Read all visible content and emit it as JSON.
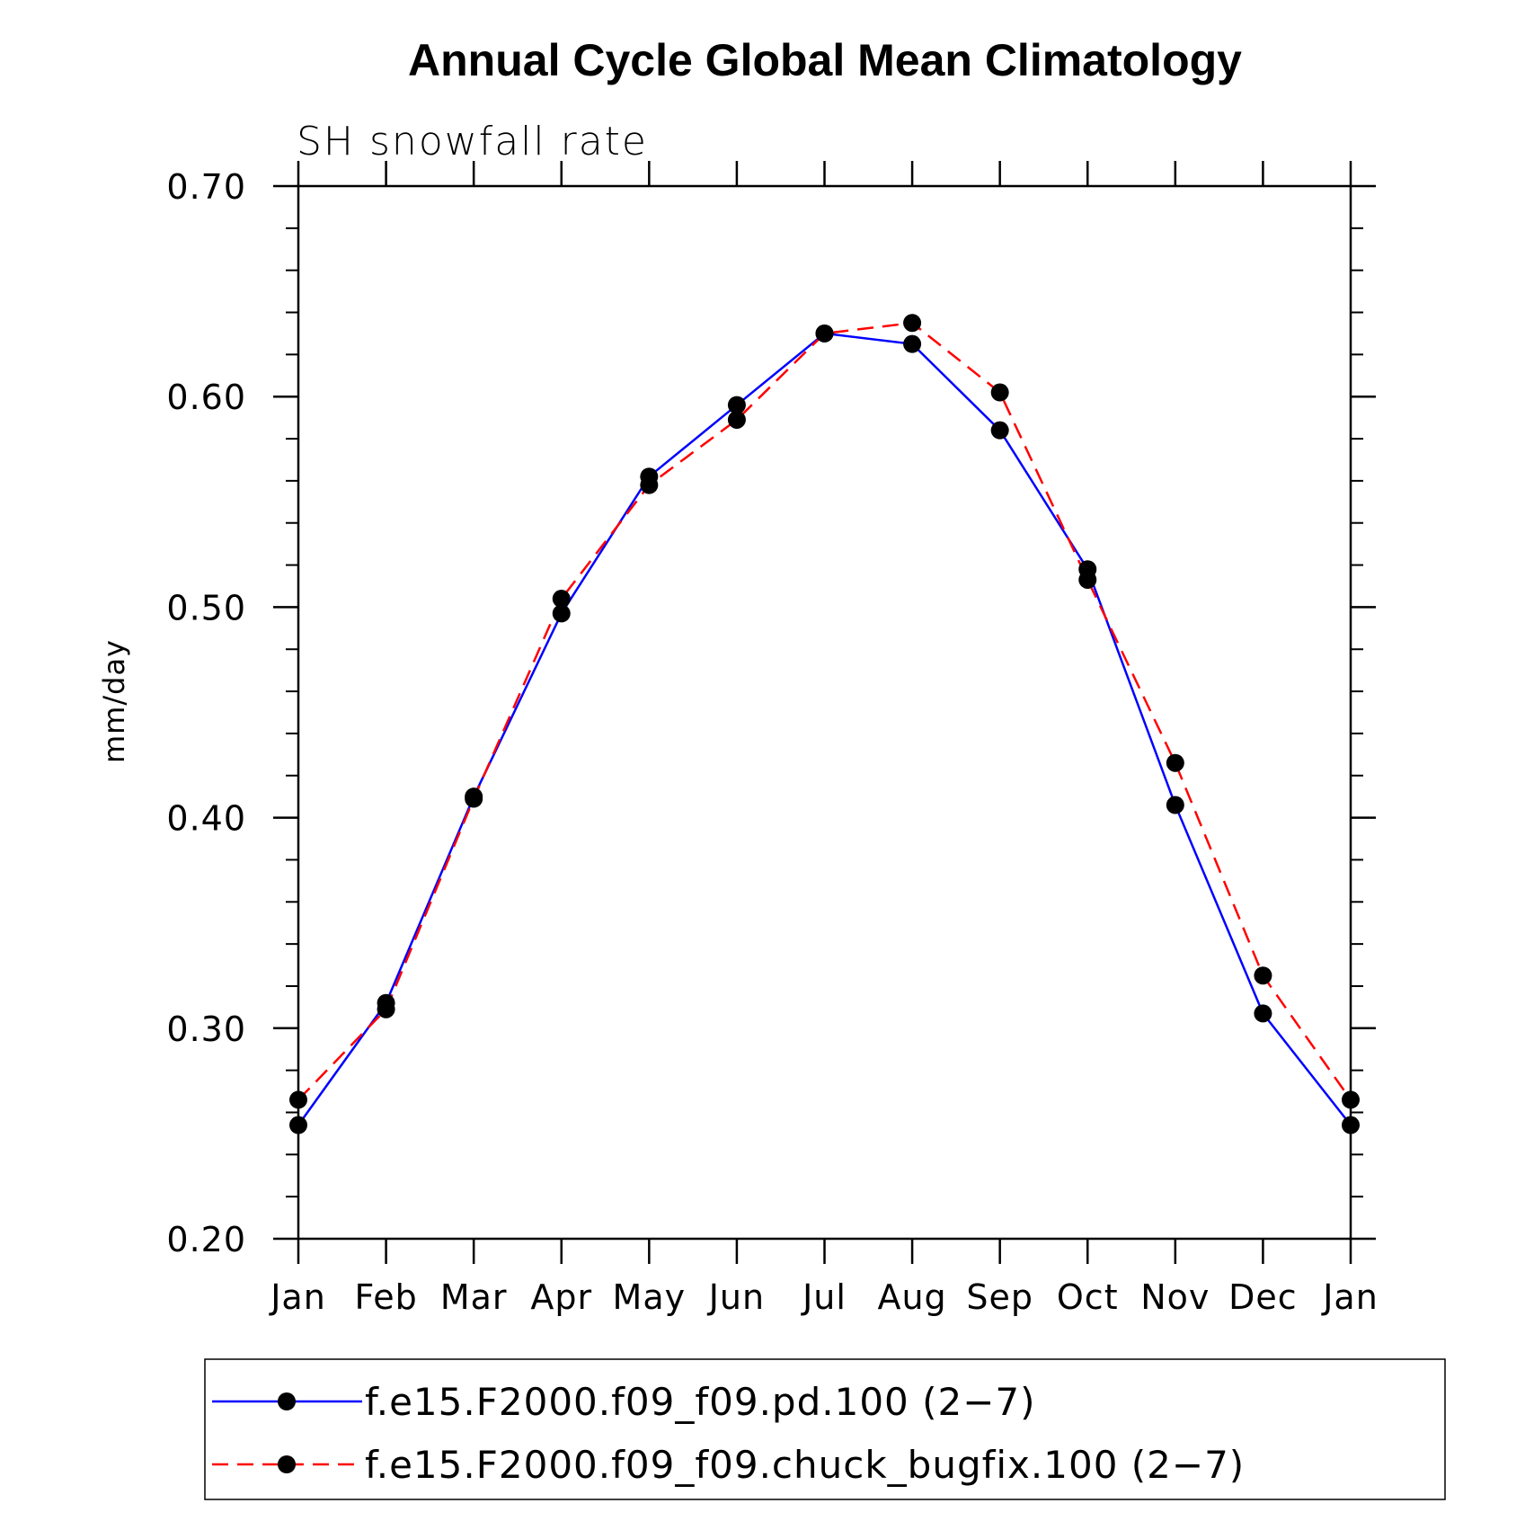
{
  "chart_data": {
    "type": "line",
    "title": "Annual Cycle Global Mean Climatology",
    "subtitle": "SH snowfall rate",
    "xlabel": "",
    "ylabel": "mm/day",
    "categories": [
      "Jan",
      "Feb",
      "Mar",
      "Apr",
      "May",
      "Jun",
      "Jul",
      "Aug",
      "Sep",
      "Oct",
      "Nov",
      "Dec",
      "Jan"
    ],
    "ylim": [
      0.2,
      0.7
    ],
    "yticks": [
      0.2,
      0.3,
      0.4,
      0.5,
      0.6,
      0.7
    ],
    "ytick_labels": [
      "0.20",
      "0.30",
      "0.40",
      "0.50",
      "0.60",
      "0.70"
    ],
    "y_minor_step": 0.02,
    "series": [
      {
        "name": "f.e15.F2000.f09_f09.pd.100 (2−7)",
        "color": "#0000ff",
        "style": "solid",
        "marker": "circle",
        "values": [
          0.254,
          0.312,
          0.41,
          0.497,
          0.562,
          0.596,
          0.63,
          0.625,
          0.584,
          0.518,
          0.406,
          0.307,
          0.254
        ]
      },
      {
        "name": "f.e15.F2000.f09_f09.chuck_bugfix.100 (2−7)",
        "color": "#ff0000",
        "style": "dashed",
        "marker": "circle",
        "values": [
          0.266,
          0.309,
          0.409,
          0.504,
          0.558,
          0.589,
          0.63,
          0.635,
          0.602,
          0.513,
          0.426,
          0.325,
          0.266
        ]
      }
    ],
    "legend_position": "bottom"
  }
}
